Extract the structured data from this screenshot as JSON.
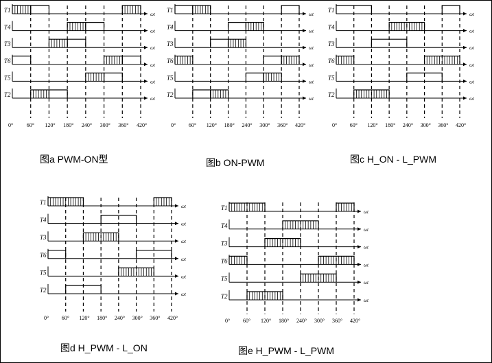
{
  "ticks": [
    "0°",
    "60°",
    "120°",
    "180°",
    "240°",
    "300°",
    "360°",
    "420°"
  ],
  "axis_label": "ωt",
  "panels": [
    {
      "caption": "图a PWM-ON型",
      "rows": [
        {
          "label": "T1",
          "segs": [
            [
              0,
              60,
              "p"
            ],
            [
              60,
              120,
              "h"
            ],
            [
              360,
              420,
              "p"
            ]
          ]
        },
        {
          "label": "T4",
          "segs": [
            [
              180,
              240,
              "p"
            ],
            [
              240,
              300,
              "h"
            ]
          ]
        },
        {
          "label": "T3",
          "segs": [
            [
              120,
              180,
              "p"
            ],
            [
              180,
              240,
              "h"
            ]
          ]
        },
        {
          "label": "T6",
          "segs": [
            [
              0,
              60,
              "h"
            ],
            [
              300,
              360,
              "p"
            ],
            [
              360,
              420,
              "h"
            ]
          ]
        },
        {
          "label": "T5",
          "segs": [
            [
              240,
              300,
              "p"
            ],
            [
              300,
              360,
              "h"
            ]
          ]
        },
        {
          "label": "T2",
          "segs": [
            [
              60,
              120,
              "p"
            ],
            [
              120,
              180,
              "h"
            ]
          ]
        }
      ]
    },
    {
      "caption": "图b ON-PWM",
      "rows": [
        {
          "label": "T1",
          "segs": [
            [
              0,
              60,
              "h"
            ],
            [
              60,
              120,
              "p"
            ],
            [
              360,
              420,
              "h"
            ]
          ]
        },
        {
          "label": "T4",
          "segs": [
            [
              180,
              240,
              "h"
            ],
            [
              240,
              300,
              "p"
            ]
          ]
        },
        {
          "label": "T3",
          "segs": [
            [
              120,
              180,
              "h"
            ],
            [
              180,
              240,
              "p"
            ]
          ]
        },
        {
          "label": "T6",
          "segs": [
            [
              0,
              60,
              "p"
            ],
            [
              300,
              360,
              "h"
            ],
            [
              360,
              420,
              "p"
            ]
          ]
        },
        {
          "label": "T5",
          "segs": [
            [
              240,
              300,
              "h"
            ],
            [
              300,
              360,
              "p"
            ]
          ]
        },
        {
          "label": "T2",
          "segs": [
            [
              60,
              120,
              "h"
            ],
            [
              120,
              180,
              "p"
            ]
          ]
        }
      ]
    },
    {
      "caption": "图c  H_ON - L_PWM",
      "rows": [
        {
          "label": "T1",
          "segs": [
            [
              0,
              120,
              "h"
            ],
            [
              360,
              420,
              "h"
            ]
          ]
        },
        {
          "label": "T4",
          "segs": [
            [
              180,
              300,
              "p"
            ]
          ]
        },
        {
          "label": "T3",
          "segs": [
            [
              120,
              240,
              "h"
            ]
          ]
        },
        {
          "label": "T6",
          "segs": [
            [
              0,
              60,
              "p"
            ],
            [
              300,
              420,
              "p"
            ]
          ]
        },
        {
          "label": "T5",
          "segs": [
            [
              240,
              360,
              "h"
            ]
          ]
        },
        {
          "label": "T2",
          "segs": [
            [
              60,
              180,
              "p"
            ]
          ]
        }
      ]
    },
    {
      "caption": "图d H_PWM - L_ON",
      "rows": [
        {
          "label": "T1",
          "segs": [
            [
              0,
              120,
              "p"
            ],
            [
              360,
              420,
              "p"
            ]
          ]
        },
        {
          "label": "T4",
          "segs": [
            [
              180,
              300,
              "h"
            ]
          ]
        },
        {
          "label": "T3",
          "segs": [
            [
              120,
              240,
              "p"
            ]
          ]
        },
        {
          "label": "T6",
          "segs": [
            [
              0,
              60,
              "h"
            ],
            [
              300,
              420,
              "h"
            ]
          ]
        },
        {
          "label": "T5",
          "segs": [
            [
              240,
              360,
              "p"
            ]
          ]
        },
        {
          "label": "T2",
          "segs": [
            [
              60,
              180,
              "h"
            ]
          ]
        }
      ]
    },
    {
      "caption": "图e H_PWM - L_PWM",
      "rows": [
        {
          "label": "T1",
          "segs": [
            [
              0,
              120,
              "p"
            ],
            [
              360,
              420,
              "p"
            ]
          ]
        },
        {
          "label": "T4",
          "segs": [
            [
              180,
              300,
              "p"
            ]
          ]
        },
        {
          "label": "T3",
          "segs": [
            [
              120,
              240,
              "p"
            ]
          ]
        },
        {
          "label": "T6",
          "segs": [
            [
              0,
              60,
              "p"
            ],
            [
              300,
              420,
              "p"
            ]
          ]
        },
        {
          "label": "T5",
          "segs": [
            [
              240,
              360,
              "p"
            ]
          ]
        },
        {
          "label": "T2",
          "segs": [
            [
              60,
              180,
              "p"
            ]
          ]
        }
      ]
    }
  ]
}
